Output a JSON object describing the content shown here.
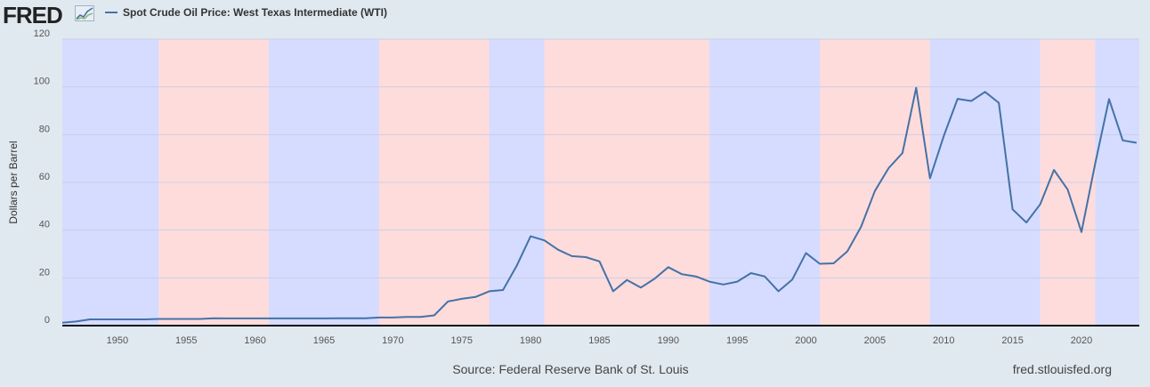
{
  "header": {
    "logo_text": "FRED",
    "legend_label": "Spot Crude Oil Price: West Texas Intermediate (WTI)",
    "logo_icon": "chart-line-icon"
  },
  "footer": {
    "source": "Source: Federal Reserve Bank of St. Louis",
    "site": "fred.stlouisfed.org"
  },
  "colors": {
    "series": "#4572a7",
    "band_blue": "#d5dcff",
    "band_red": "#ffdcdc",
    "grid": "#c9cfe6",
    "baseline": "#111111"
  },
  "chart_data": {
    "type": "line",
    "title": "",
    "xlabel": "",
    "ylabel": "Dollars per Barrel",
    "xlim": [
      1946,
      2024.2
    ],
    "ylim": [
      0,
      120
    ],
    "yticks": [
      0,
      20,
      40,
      60,
      80,
      100,
      120
    ],
    "xticks": [
      1950,
      1955,
      1960,
      1965,
      1970,
      1975,
      1980,
      1985,
      1990,
      1995,
      2000,
      2005,
      2010,
      2015,
      2020
    ],
    "grid": true,
    "shaded_periods": [
      {
        "start": 1946,
        "end": 1953,
        "color": "blue"
      },
      {
        "start": 1953,
        "end": 1961,
        "color": "red"
      },
      {
        "start": 1961,
        "end": 1969,
        "color": "blue"
      },
      {
        "start": 1969,
        "end": 1977,
        "color": "red"
      },
      {
        "start": 1977,
        "end": 1981,
        "color": "blue"
      },
      {
        "start": 1981,
        "end": 1993,
        "color": "red"
      },
      {
        "start": 1993,
        "end": 2001,
        "color": "blue"
      },
      {
        "start": 2001,
        "end": 2009,
        "color": "red"
      },
      {
        "start": 2009,
        "end": 2017,
        "color": "blue"
      },
      {
        "start": 2017,
        "end": 2021,
        "color": "red"
      },
      {
        "start": 2021,
        "end": 2024.2,
        "color": "blue"
      }
    ],
    "series": [
      {
        "x": [
          1946,
          1947,
          1948,
          1949,
          1950,
          1951,
          1952,
          1953,
          1954,
          1955,
          1956,
          1957,
          1958,
          1959,
          1960,
          1961,
          1962,
          1963,
          1964,
          1965,
          1966,
          1967,
          1968,
          1969,
          1970,
          1971,
          1972,
          1973,
          1974,
          1975,
          1976,
          1977,
          1978,
          1979,
          1980,
          1981,
          1982,
          1983,
          1984,
          1985,
          1986,
          1987,
          1988,
          1989,
          1990,
          1991,
          1992,
          1993,
          1994,
          1995,
          1996,
          1997,
          1998,
          1999,
          2000,
          2001,
          2002,
          2003,
          2004,
          2005,
          2006,
          2007,
          2008,
          2009,
          2010,
          2011,
          2012,
          2013,
          2014,
          2015,
          2016,
          2017,
          2018,
          2019,
          2020,
          2021,
          2022,
          2023,
          2024
        ],
        "y": [
          1.2,
          1.7,
          2.6,
          2.6,
          2.6,
          2.6,
          2.6,
          2.8,
          2.8,
          2.8,
          2.8,
          3.1,
          3.0,
          3.0,
          3.0,
          3.0,
          3.0,
          3.0,
          3.0,
          3.0,
          3.1,
          3.1,
          3.1,
          3.4,
          3.4,
          3.6,
          3.6,
          4.3,
          10.1,
          11.2,
          12.0,
          14.4,
          14.9,
          25.1,
          37.4,
          35.7,
          31.8,
          29.1,
          28.7,
          26.9,
          14.4,
          19.1,
          15.9,
          19.6,
          24.5,
          21.5,
          20.6,
          18.4,
          17.2,
          18.4,
          22.0,
          20.6,
          14.4,
          19.3,
          30.4,
          25.9,
          26.1,
          31.1,
          41.4,
          56.4,
          66.0,
          72.3,
          99.6,
          61.7,
          79.4,
          95.0,
          94.1,
          97.9,
          93.3,
          48.7,
          43.2,
          50.8,
          65.2,
          57.0,
          39.2,
          68.0,
          94.9,
          77.6,
          76.6
        ]
      }
    ]
  }
}
